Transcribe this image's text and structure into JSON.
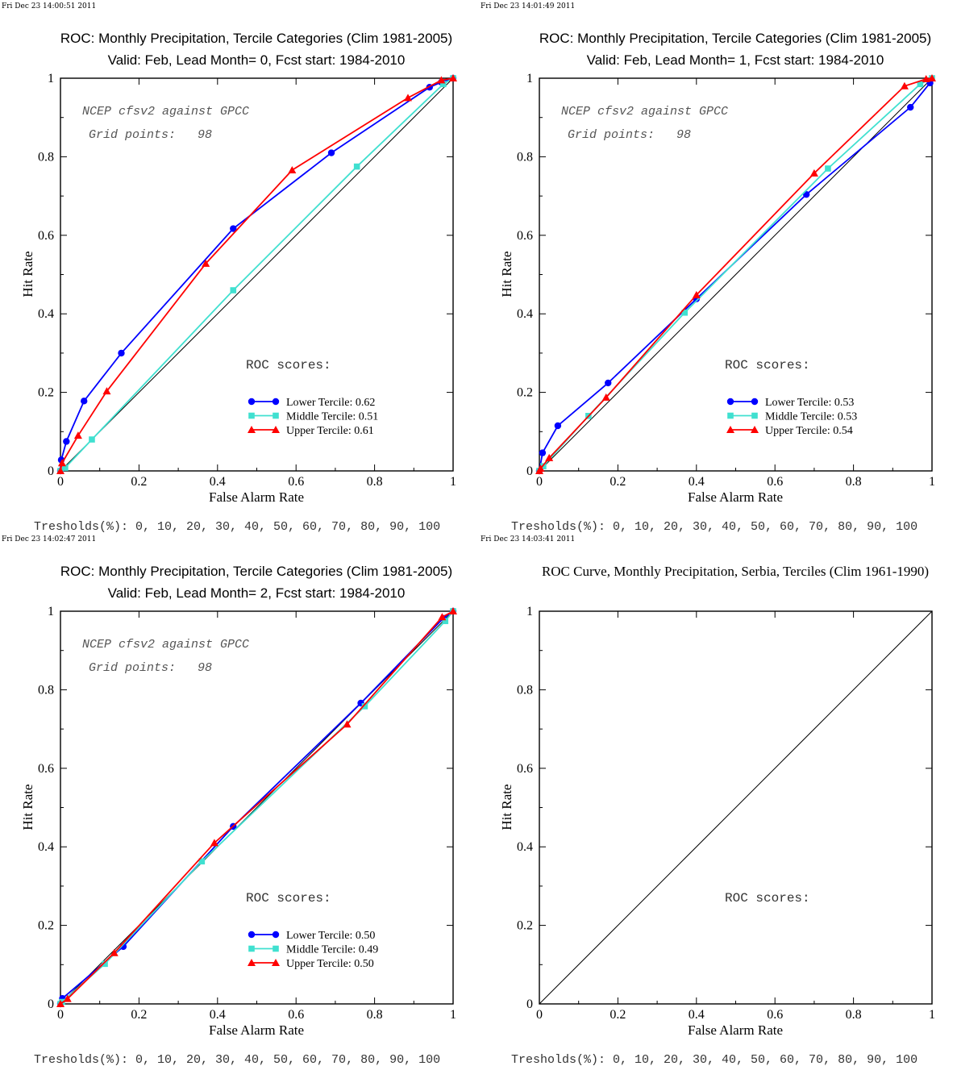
{
  "panels": [
    {
      "stamp": "Fri Dec 23 14:00:51 2011",
      "title_line1": "ROC: Monthly Precipitation, Tercile Categories (Clim 1981-2005)",
      "title_line2": "Valid: Feb, Lead Month= 0, Fcst start: 1984-2010",
      "note_line1": "NCEP cfsv2 against GPCC",
      "note_line2": "Grid points:   98",
      "roc_label": "ROC scores:",
      "thresholds": "Tresholds(%): 0, 10, 20, 30, 40, 50, 60, 70, 80, 90, 100"
    },
    {
      "stamp": "Fri Dec 23 14:01:49 2011",
      "title_line1": "ROC: Monthly Precipitation, Tercile Categories (Clim 1981-2005)",
      "title_line2": "Valid: Feb, Lead Month= 1, Fcst start: 1984-2010",
      "note_line1": "NCEP cfsv2 against GPCC",
      "note_line2": "Grid points:   98",
      "roc_label": "ROC scores:",
      "thresholds": "Tresholds(%): 0, 10, 20, 30, 40, 50, 60, 70, 80, 90, 100"
    },
    {
      "stamp": "Fri Dec 23 14:02:47 2011",
      "title_line1": "ROC: Monthly Precipitation, Tercile Categories (Clim 1981-2005)",
      "title_line2": "Valid: Feb, Lead Month= 2, Fcst start: 1984-2010",
      "note_line1": "NCEP cfsv2 against GPCC",
      "note_line2": "Grid points:   98",
      "roc_label": "ROC scores:",
      "thresholds": "Tresholds(%): 0, 10, 20, 30, 40, 50, 60, 70, 80, 90, 100"
    },
    {
      "stamp": "Fri Dec 23 14:03:41 2011",
      "title_line1": "ROC Curve, Monthly Precipitation, Serbia, Terciles (Clim 1961-1990)",
      "title_line2": "",
      "note_line1": "",
      "note_line2": "",
      "roc_label": "ROC scores:",
      "thresholds": "Tresholds(%): 0, 10, 20, 30, 40, 50, 60, 70, 80, 90, 100"
    }
  ],
  "colors": {
    "lower": "#0000ff",
    "middle": "#40e0d0",
    "upper": "#ff0000",
    "diagonal": "#000000"
  },
  "chart_data": [
    {
      "type": "line",
      "xlabel": "False Alarm Rate",
      "ylabel": "Hit Rate",
      "xlim": [
        0,
        1
      ],
      "ylim": [
        0,
        1
      ],
      "xticks": [
        "0",
        "0.2",
        "0.4",
        "0.6",
        "0.8",
        "1"
      ],
      "yticks": [
        "0",
        "0.2",
        "0.4",
        "0.6",
        "0.8",
        "1"
      ],
      "reference_line": [
        [
          0,
          0
        ],
        [
          1,
          1
        ]
      ],
      "series": [
        {
          "name": "Lower Tercile: 0.62",
          "key": "lower",
          "marker": "circle",
          "x": [
            0.0,
            0.002,
            0.015,
            0.06,
            0.155,
            0.44,
            0.69,
            0.94,
            0.97,
            1.0
          ],
          "y": [
            0.0,
            0.028,
            0.075,
            0.178,
            0.3,
            0.617,
            0.81,
            0.977,
            0.99,
            1.0
          ]
        },
        {
          "name": "Middle Tercile: 0.51",
          "key": "middle",
          "marker": "square",
          "x": [
            0.0,
            0.012,
            0.08,
            0.44,
            0.755,
            0.975,
            1.0
          ],
          "y": [
            0.0,
            0.008,
            0.08,
            0.46,
            0.775,
            0.985,
            1.0
          ]
        },
        {
          "name": "Upper Tercile: 0.61",
          "key": "upper",
          "marker": "triangle",
          "x": [
            0.0,
            0.004,
            0.045,
            0.118,
            0.37,
            0.59,
            0.885,
            0.97,
            1.0
          ],
          "y": [
            0.0,
            0.02,
            0.09,
            0.203,
            0.528,
            0.766,
            0.95,
            0.995,
            1.0
          ]
        }
      ]
    },
    {
      "type": "line",
      "xlabel": "False Alarm Rate",
      "ylabel": "Hit Rate",
      "xlim": [
        0,
        1
      ],
      "ylim": [
        0,
        1
      ],
      "xticks": [
        "0",
        "0.2",
        "0.4",
        "0.6",
        "0.8",
        "1"
      ],
      "yticks": [
        "0",
        "0.2",
        "0.4",
        "0.6",
        "0.8",
        "1"
      ],
      "reference_line": [
        [
          0,
          0
        ],
        [
          1,
          1
        ]
      ],
      "series": [
        {
          "name": "Lower Tercile: 0.53",
          "key": "lower",
          "marker": "circle",
          "x": [
            0.0,
            0.008,
            0.047,
            0.175,
            0.4,
            0.68,
            0.945,
            0.995
          ],
          "y": [
            0.0,
            0.046,
            0.115,
            0.224,
            0.438,
            0.704,
            0.926,
            0.988
          ]
        },
        {
          "name": "Middle Tercile: 0.53",
          "key": "middle",
          "marker": "square",
          "x": [
            0.0,
            0.01,
            0.125,
            0.37,
            0.735,
            0.97,
            1.0
          ],
          "y": [
            0.0,
            0.012,
            0.14,
            0.403,
            0.77,
            0.985,
            1.0
          ]
        },
        {
          "name": "Upper Tercile: 0.54",
          "key": "upper",
          "marker": "triangle",
          "x": [
            0.0,
            0.003,
            0.025,
            0.17,
            0.4,
            0.7,
            0.93,
            0.985,
            1.0
          ],
          "y": [
            0.0,
            0.006,
            0.033,
            0.187,
            0.448,
            0.758,
            0.98,
            0.998,
            1.0
          ]
        }
      ]
    },
    {
      "type": "line",
      "xlabel": "False Alarm Rate",
      "ylabel": "Hit Rate",
      "xlim": [
        0,
        1
      ],
      "ylim": [
        0,
        1
      ],
      "xticks": [
        "0",
        "0.2",
        "0.4",
        "0.6",
        "0.8",
        "1"
      ],
      "yticks": [
        "0",
        "0.2",
        "0.4",
        "0.6",
        "0.8",
        "1"
      ],
      "reference_line": [
        [
          0,
          0
        ],
        [
          1,
          1
        ]
      ],
      "series": [
        {
          "name": "Lower Tercile: 0.50",
          "key": "lower",
          "marker": "circle",
          "x": [
            0.0,
            0.005,
            0.16,
            0.44,
            0.765,
            0.975,
            1.0
          ],
          "y": [
            0.0,
            0.014,
            0.146,
            0.452,
            0.766,
            0.982,
            1.0
          ]
        },
        {
          "name": "Middle Tercile: 0.49",
          "key": "middle",
          "marker": "square",
          "x": [
            0.0,
            0.004,
            0.113,
            0.36,
            0.775,
            0.98,
            1.0
          ],
          "y": [
            0.0,
            0.005,
            0.102,
            0.363,
            0.758,
            0.975,
            1.0
          ]
        },
        {
          "name": "Upper Tercile: 0.50",
          "key": "upper",
          "marker": "triangle",
          "x": [
            0.0,
            0.018,
            0.137,
            0.392,
            0.73,
            0.972,
            1.0
          ],
          "y": [
            0.0,
            0.013,
            0.13,
            0.41,
            0.712,
            0.985,
            1.0
          ]
        }
      ]
    },
    {
      "type": "line",
      "xlabel": "False Alarm Rate",
      "ylabel": "Hit Rate",
      "xlim": [
        0,
        1
      ],
      "ylim": [
        0,
        1
      ],
      "xticks": [
        "0",
        "0.2",
        "0.4",
        "0.6",
        "0.8",
        "1"
      ],
      "yticks": [
        "0",
        "0.2",
        "0.4",
        "0.6",
        "0.8",
        "1"
      ],
      "reference_line": [
        [
          0,
          0
        ],
        [
          1,
          1
        ]
      ],
      "series": []
    }
  ]
}
